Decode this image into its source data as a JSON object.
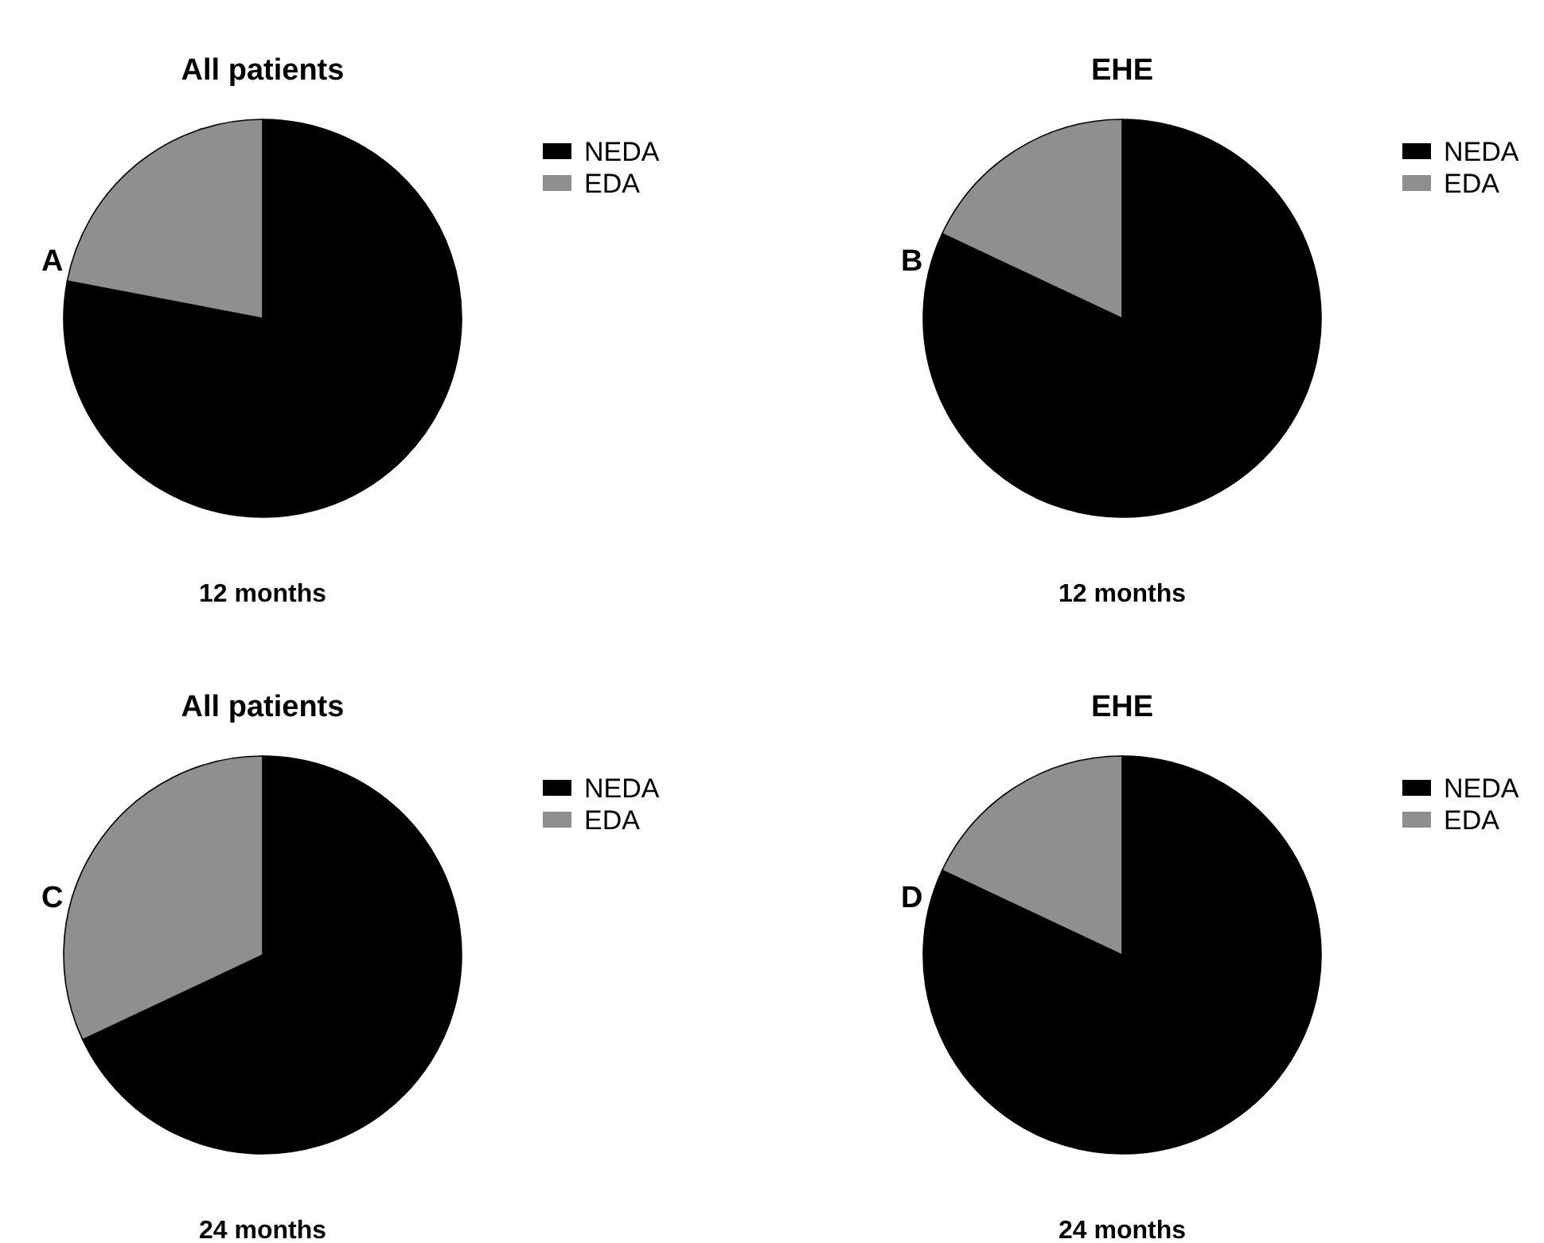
{
  "chart_data": [
    {
      "type": "pie",
      "title": "All patients",
      "categories": [
        "NEDA",
        "EDA"
      ],
      "values": [
        78,
        22
      ],
      "colors": [
        "#000000",
        "#8f8f8f"
      ],
      "legend": "right",
      "annotations": [
        "A",
        "12 months"
      ]
    },
    {
      "type": "pie",
      "title": "EHE",
      "categories": [
        "NEDA",
        "EDA"
      ],
      "values": [
        82,
        18
      ],
      "colors": [
        "#000000",
        "#8f8f8f"
      ],
      "legend": "right",
      "annotations": [
        "B",
        "12 months"
      ]
    },
    {
      "type": "pie",
      "title": "All patients",
      "categories": [
        "NEDA",
        "EDA"
      ],
      "values": [
        68,
        32
      ],
      "colors": [
        "#000000",
        "#8f8f8f"
      ],
      "legend": "right",
      "annotations": [
        "C",
        "24 months"
      ]
    },
    {
      "type": "pie",
      "title": "EHE",
      "categories": [
        "NEDA",
        "EDA"
      ],
      "values": [
        82,
        18
      ],
      "colors": [
        "#000000",
        "#8f8f8f"
      ],
      "legend": "right",
      "annotations": [
        "D",
        "24 months"
      ]
    }
  ]
}
